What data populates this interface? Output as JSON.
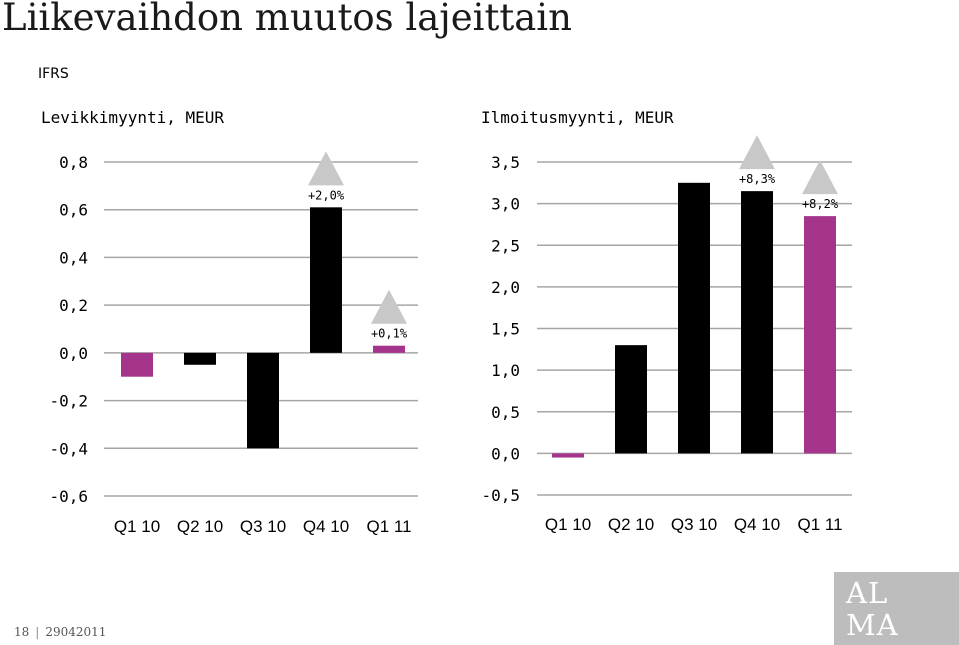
{
  "title": "Liikevaihdon muutos lajeittain",
  "subtitle": "IFRS",
  "footer": {
    "page": "18",
    "date": "29042011"
  },
  "logo": {
    "line1": "AL",
    "line2": "MA"
  },
  "colors": {
    "highlight": "#A5358A",
    "bar": "#000000",
    "grid": "#a6a6a6",
    "marker": "#c8c8c8"
  },
  "chart_data": [
    {
      "type": "bar",
      "title": "Levikkimyynti, MEUR",
      "categories": [
        "Q1 10",
        "Q2 10",
        "Q3 10",
        "Q4 10",
        "Q1 11"
      ],
      "values": [
        -0.1,
        -0.05,
        -0.4,
        0.61,
        0.03
      ],
      "highlight": [
        true,
        false,
        false,
        false,
        true
      ],
      "ylim": [
        -0.6,
        0.8
      ],
      "yticks": [
        0.8,
        0.6,
        0.4,
        0.2,
        0.0,
        -0.2,
        -0.4,
        -0.6
      ],
      "ytick_labels": [
        "0,8",
        "0,6",
        "0,4",
        "0,2",
        "0,0",
        "-0,2",
        "-0,4",
        "-0,6"
      ],
      "annotations": [
        {
          "category": "Q4 10",
          "label": "+2,0%"
        },
        {
          "category": "Q1 11",
          "label": "+0,1%"
        }
      ],
      "grid": true
    },
    {
      "type": "bar",
      "title": "Ilmoitusmyynti, MEUR",
      "categories": [
        "Q1 10",
        "Q2 10",
        "Q3 10",
        "Q4 10",
        "Q1 11"
      ],
      "values": [
        -0.05,
        1.3,
        3.25,
        3.15,
        2.85
      ],
      "highlight": [
        true,
        false,
        false,
        false,
        true
      ],
      "ylim": [
        -0.5,
        3.5
      ],
      "yticks": [
        3.5,
        3.0,
        2.5,
        2.0,
        1.5,
        1.0,
        0.5,
        0.0,
        -0.5
      ],
      "ytick_labels": [
        "3,5",
        "3,0",
        "2,5",
        "2,0",
        "1,5",
        "1,0",
        "0,5",
        "0,0",
        "-0,5"
      ],
      "annotations": [
        {
          "category": "Q4 10",
          "label": "+8,3%"
        },
        {
          "category": "Q1 11",
          "label": "+8,2%"
        }
      ],
      "grid": true
    }
  ]
}
